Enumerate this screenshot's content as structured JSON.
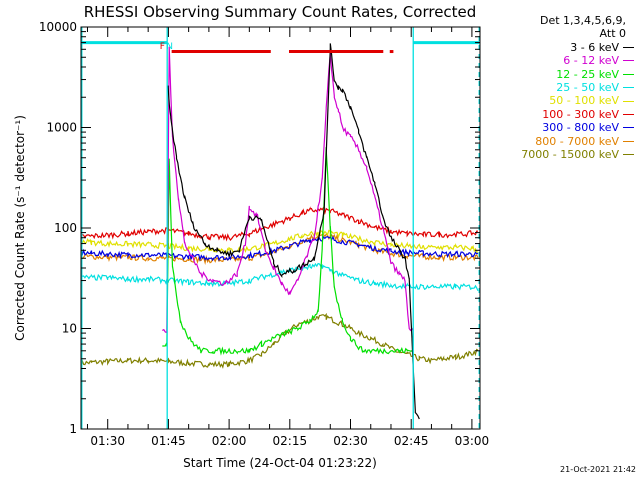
{
  "chart_data": {
    "type": "line",
    "title": "RHESSI Observing Summary Count Rates, Corrected",
    "xlabel": "Start Time (24-Oct-04 01:23:22)",
    "ylabel": "Corrected Count Rate (s⁻¹ detector⁻¹)",
    "ylog": true,
    "ylim": [
      1,
      10000
    ],
    "xlim": [
      83.4,
      182.0
    ],
    "x_unit": "minutes after 00:00 UT",
    "x_ticks": [
      {
        "x": 90,
        "label": "01:30"
      },
      {
        "x": 105,
        "label": "01:45"
      },
      {
        "x": 120,
        "label": "02:00"
      },
      {
        "x": 135,
        "label": "02:15"
      },
      {
        "x": 150,
        "label": "02:30"
      },
      {
        "x": 165,
        "label": "02:45"
      },
      {
        "x": 180,
        "label": "03:00"
      }
    ],
    "y_ticks": [
      {
        "y": 1,
        "label": "1"
      },
      {
        "y": 10,
        "label": "10"
      },
      {
        "y": 100,
        "label": "100"
      },
      {
        "y": 1000,
        "label": "1000"
      },
      {
        "y": 10000,
        "label": "10000"
      }
    ],
    "legend_header": [
      "Det 1,3,4,5,6,9,",
      "Att 0"
    ],
    "legend_position": "right",
    "series": [
      {
        "name": "3 - 6 keV",
        "color": "#000000",
        "x": [
          83.4,
          102,
          104.5,
          104.9,
          105.6,
          107,
          109,
          111,
          114,
          117,
          120,
          122.5,
          125,
          128,
          131,
          133,
          136,
          138,
          141,
          143.5,
          145,
          146,
          147,
          148,
          150,
          152,
          154,
          156,
          158,
          160,
          162,
          163.5,
          164.5,
          165.2,
          166,
          167
        ],
        "y": [
          null,
          null,
          null,
          2500,
          1200,
          500,
          200,
          110,
          70,
          60,
          55,
          60,
          130,
          120,
          45,
          35,
          38,
          42,
          50,
          150,
          6500,
          3000,
          2500,
          2400,
          1600,
          900,
          500,
          280,
          130,
          80,
          60,
          50,
          30,
          8,
          1.5,
          1.2
        ]
      },
      {
        "name": "6 - 12 keV",
        "color": "#d000d0",
        "x": [
          83.4,
          100,
          103.5,
          104.6,
          105.2,
          106,
          107.5,
          109,
          111,
          113,
          116,
          119,
          122,
          124,
          125,
          127,
          129,
          131,
          133,
          135,
          137,
          139,
          141,
          143,
          144,
          145,
          146,
          147,
          148,
          150,
          152,
          154,
          156,
          158,
          160,
          162,
          163.5,
          164.5,
          165.5
        ],
        "y": [
          null,
          null,
          9.5,
          9.5,
          6000,
          800,
          200,
          70,
          50,
          35,
          30,
          28,
          35,
          70,
          160,
          130,
          60,
          40,
          28,
          22,
          30,
          50,
          80,
          300,
          1500,
          5500,
          2000,
          1500,
          1000,
          800,
          600,
          400,
          200,
          100,
          45,
          35,
          30,
          9.5,
          9.5
        ]
      },
      {
        "name": "12 - 25 keV",
        "color": "#00e000",
        "x": [
          83.4,
          100,
          103.5,
          104.6,
          105.2,
          106,
          108,
          110,
          113,
          116,
          119,
          122,
          125,
          128,
          131,
          134,
          137,
          140,
          142,
          143,
          144,
          145,
          146,
          148,
          150,
          153,
          156,
          159,
          162,
          164,
          165.5,
          166.5
        ],
        "y": [
          null,
          null,
          7,
          7,
          500,
          40,
          12,
          8,
          6,
          6,
          6,
          6,
          6,
          7,
          8,
          9,
          10,
          12,
          15,
          60,
          600,
          100,
          25,
          12,
          8,
          6,
          6,
          6,
          6,
          6,
          6,
          null
        ]
      },
      {
        "name": "25 - 50 keV",
        "color": "#00e0e0",
        "x": [
          83.4,
          86,
          90,
          95,
          100,
          105,
          110,
          115,
          120,
          125,
          130,
          135,
          140,
          143,
          145,
          148,
          152,
          156,
          160,
          164,
          168,
          172,
          176,
          180,
          181.5
        ],
        "y": [
          32,
          32,
          32,
          31,
          31,
          30,
          29,
          28,
          28,
          30,
          34,
          38,
          41,
          42,
          38,
          34,
          30,
          28,
          27,
          26,
          26,
          26,
          26,
          26,
          25
        ]
      },
      {
        "name": "50 - 100 keV",
        "color": "#e0e000",
        "x": [
          83.4,
          86,
          90,
          95,
          100,
          105,
          110,
          115,
          120,
          125,
          130,
          135,
          138,
          140,
          142,
          145,
          148,
          152,
          156,
          160,
          164,
          168,
          172,
          176,
          180,
          181.5
        ],
        "y": [
          75,
          72,
          70,
          69,
          68,
          66,
          63,
          62,
          60,
          62,
          68,
          78,
          84,
          88,
          90,
          90,
          85,
          78,
          72,
          68,
          66,
          64,
          64,
          64,
          63,
          60
        ]
      },
      {
        "name": "100 - 300 keV",
        "color": "#e00000",
        "x": [
          83.4,
          86,
          90,
          95,
          100,
          105,
          110,
          115,
          120,
          125,
          130,
          135,
          138,
          140,
          142,
          145,
          148,
          152,
          156,
          160,
          164,
          168,
          172,
          176,
          180,
          181.5
        ],
        "y": [
          82,
          83,
          85,
          88,
          92,
          95,
          88,
          82,
          80,
          88,
          105,
          125,
          140,
          148,
          152,
          148,
          135,
          118,
          102,
          92,
          88,
          86,
          86,
          86,
          88,
          90
        ]
      },
      {
        "name": "300 - 800 keV",
        "color": "#0000e0",
        "x": [
          83.4,
          86,
          90,
          95,
          100,
          105,
          110,
          115,
          120,
          125,
          130,
          135,
          138,
          140,
          142,
          145,
          148,
          152,
          156,
          160,
          164,
          168,
          172,
          176,
          180,
          181.5
        ],
        "y": [
          57,
          56,
          55,
          54,
          54,
          53,
          52,
          51,
          51,
          53,
          58,
          66,
          72,
          76,
          79,
          78,
          74,
          68,
          63,
          59,
          57,
          56,
          55,
          55,
          55,
          54
        ]
      },
      {
        "name": "800 - 7000 keV",
        "color": "#e08000",
        "x": [
          83.4,
          86,
          90,
          95,
          100,
          105,
          110,
          115,
          120,
          125,
          130,
          135,
          138,
          140,
          142,
          145,
          148,
          152,
          156,
          160,
          164,
          168,
          172,
          176,
          180,
          181.5
        ],
        "y": [
          52,
          52,
          51,
          51,
          50,
          50,
          49,
          48,
          48,
          50,
          56,
          66,
          74,
          80,
          84,
          82,
          76,
          68,
          60,
          56,
          53,
          52,
          51,
          51,
          51,
          50
        ]
      },
      {
        "name": "7000 - 15000 keV",
        "color": "#808000",
        "x": [
          83.4,
          86,
          90,
          95,
          100,
          105,
          110,
          115,
          120,
          125,
          128,
          131,
          134,
          137,
          140,
          142,
          144,
          146,
          148,
          150,
          152,
          155,
          158,
          161,
          164,
          167,
          170,
          173,
          176,
          179,
          181.5
        ],
        "y": [
          4.5,
          4.6,
          4.7,
          4.8,
          4.8,
          4.7,
          4.5,
          4.4,
          4.4,
          4.8,
          5.5,
          7,
          9,
          11,
          12,
          13,
          13,
          12,
          11,
          10,
          9,
          8,
          7,
          6,
          5.5,
          5,
          4.8,
          5,
          5.2,
          5.5,
          6
        ]
      }
    ],
    "bars": [
      {
        "color": "#00e0e0",
        "x_start": 83.4,
        "x_end": 104.7,
        "y": 7000
      },
      {
        "color": "#00e0e0",
        "x_start": 165.5,
        "x_end": 181.8,
        "y": 7000
      },
      {
        "color": "#e00000",
        "x_start": 105.8,
        "x_end": 130.3,
        "y": 5700
      },
      {
        "color": "#e00000",
        "x_start": 134.8,
        "x_end": 158.1,
        "y": 5700
      },
      {
        "color": "#e00000",
        "x_start": 159.7,
        "x_end": 160.6,
        "y": 5700
      }
    ],
    "vlines": [
      {
        "x": 83.6,
        "style": "solid",
        "color": "#00e0e0"
      },
      {
        "x": 104.7,
        "style": "solid",
        "color": "#00e0e0"
      },
      {
        "x": 165.5,
        "style": "solid",
        "color": "#00e0e0"
      },
      {
        "x": 181.8,
        "style": "dashed",
        "color": "#00e0e0"
      }
    ],
    "markers": [
      {
        "x": 103.5,
        "text": "F",
        "color": "#e00000"
      },
      {
        "x": 105.3,
        "text": "N",
        "color": "#00e0e0"
      }
    ],
    "grid": false
  },
  "timestamp": "21-Oct-2021 21:42"
}
